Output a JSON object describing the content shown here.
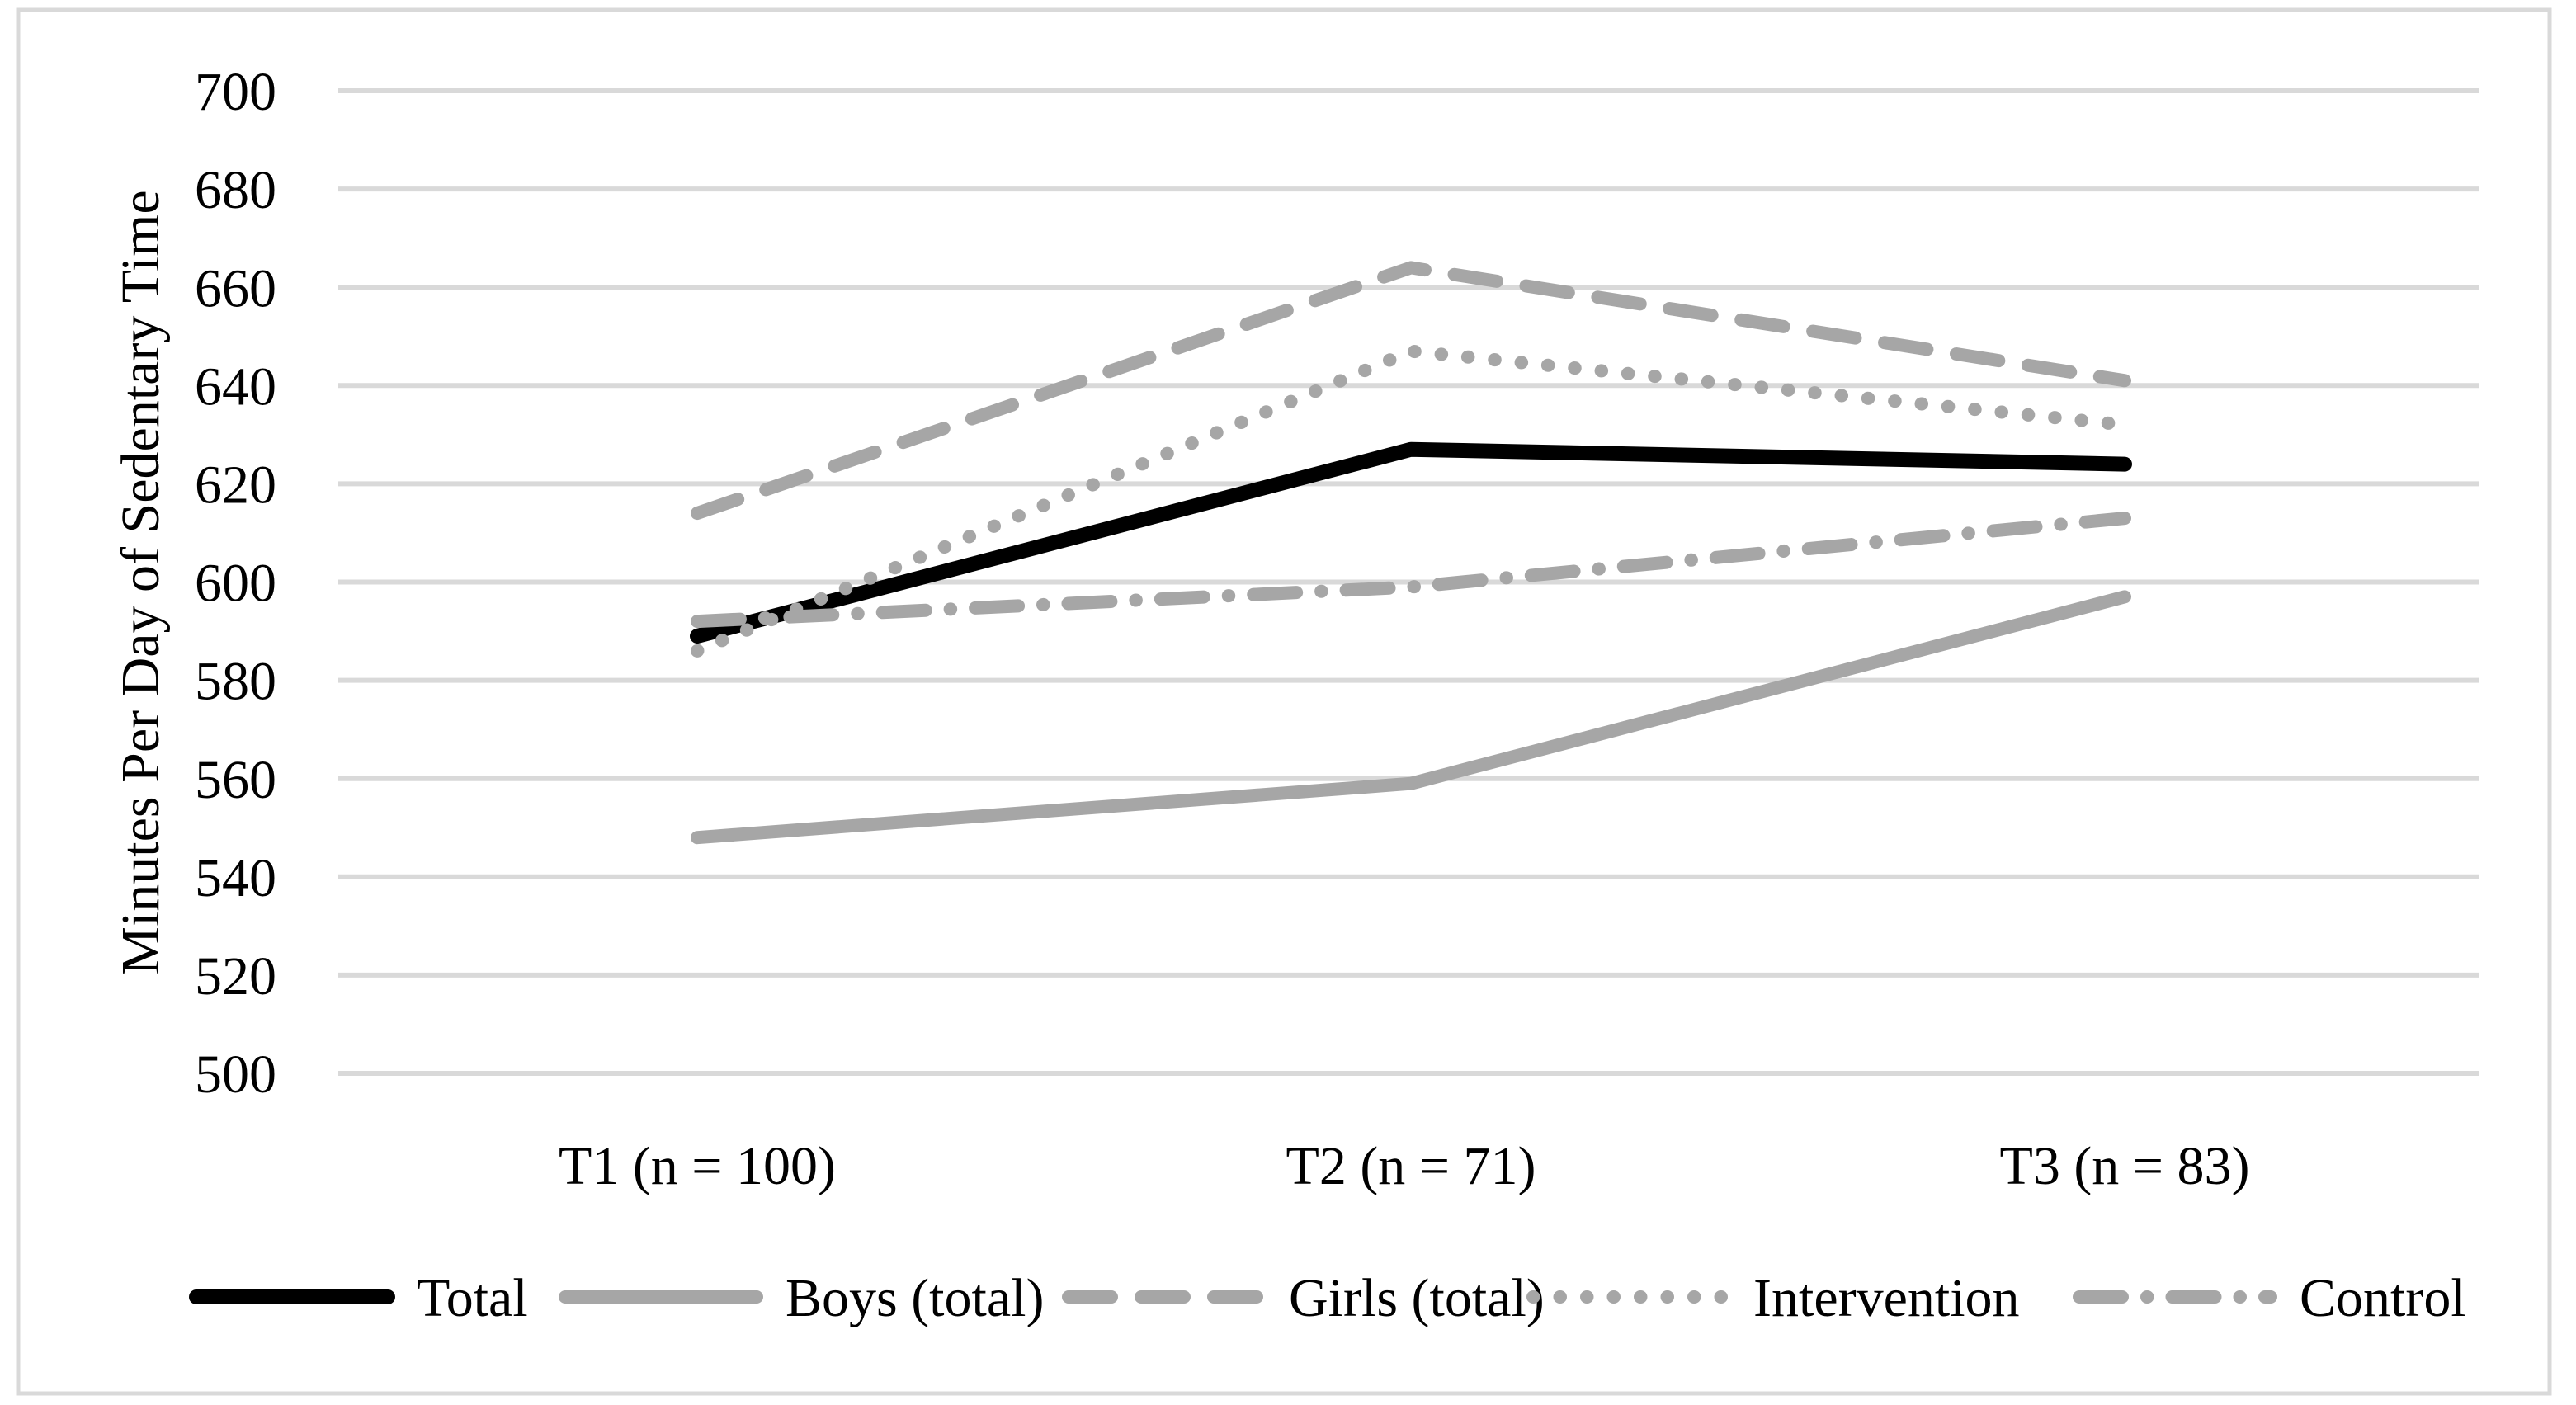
{
  "figure": {
    "background": "#ffffff",
    "border_color": "#d9d9d9",
    "grid_color": "#d9d9d9",
    "text_color": "#000000",
    "series_gray": "#a6a6a6",
    "series_black": "#000000"
  },
  "chart_data": {
    "type": "line",
    "title": "",
    "xlabel": "",
    "ylabel": "Minutes Per Day of Sedentary Time",
    "categories": [
      "T1 (n = 100)",
      "T2 (n = 71)",
      "T3 (n = 83)"
    ],
    "y_ticks": [
      700,
      680,
      660,
      640,
      620,
      600,
      580,
      560,
      540,
      520,
      500
    ],
    "ylim": [
      500,
      700
    ],
    "grid": "horizontal-only",
    "legend_position": "bottom",
    "series": [
      {
        "name": "Total",
        "values": [
          589,
          627,
          624
        ],
        "color": "#000000",
        "style": "solid",
        "width": 18
      },
      {
        "name": "Boys (total)",
        "values": [
          548,
          559,
          597
        ],
        "color": "#a6a6a6",
        "style": "solid",
        "width": 16
      },
      {
        "name": "Girls (total)",
        "values": [
          614,
          664,
          641
        ],
        "color": "#a6a6a6",
        "style": "dashed",
        "width": 16
      },
      {
        "name": "Intervention",
        "values": [
          586,
          647,
          632
        ],
        "color": "#a6a6a6",
        "style": "dotted",
        "width": 16
      },
      {
        "name": "Control",
        "values": [
          592,
          599,
          613
        ],
        "color": "#a6a6a6",
        "style": "dashdot",
        "width": 16
      }
    ]
  }
}
